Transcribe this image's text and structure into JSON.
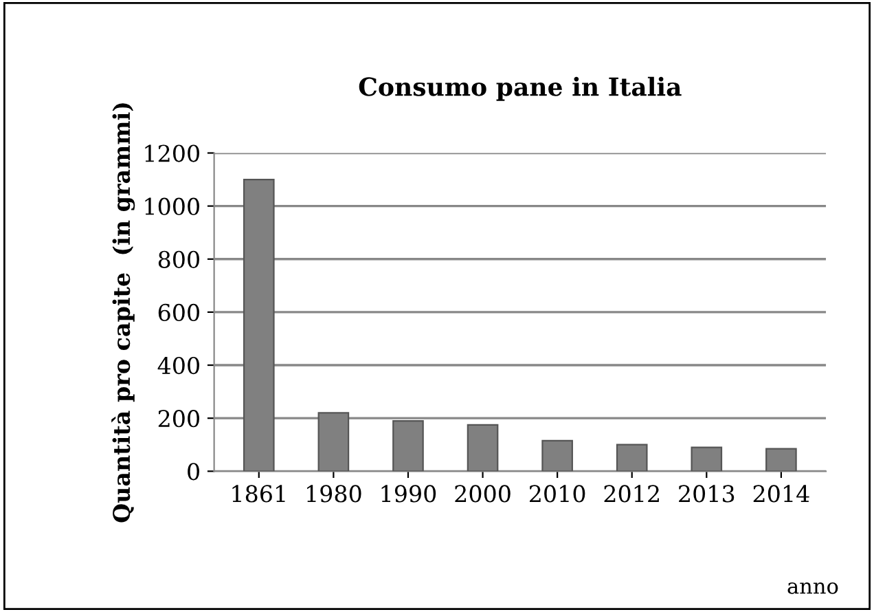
{
  "chart_data": {
    "type": "bar",
    "title": "Consumo pane in Italia",
    "xlabel": "anno",
    "ylabel": "Quantità pro capite  (in grammi)",
    "categories": [
      "1861",
      "1980",
      "1990",
      "2000",
      "2010",
      "2012",
      "2013",
      "2014"
    ],
    "values": [
      1100,
      220,
      190,
      175,
      115,
      100,
      90,
      85
    ],
    "color": "#808080",
    "ylim": [
      0,
      1200
    ],
    "yticks": [
      0,
      200,
      400,
      600,
      800,
      1000,
      1200
    ],
    "grid": "y"
  }
}
